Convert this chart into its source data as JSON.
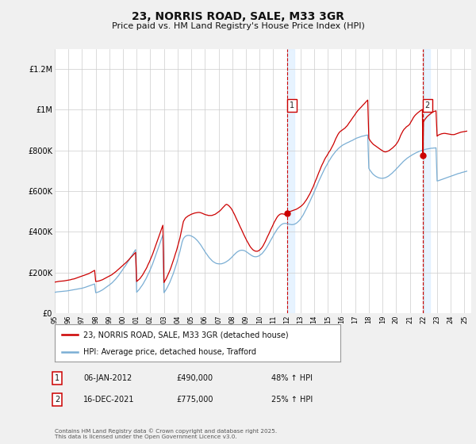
{
  "title": "23, NORRIS ROAD, SALE, M33 3GR",
  "subtitle": "Price paid vs. HM Land Registry's House Price Index (HPI)",
  "legend_line1": "23, NORRIS ROAD, SALE, M33 3GR (detached house)",
  "legend_line2": "HPI: Average price, detached house, Trafford",
  "annotation1_label": "1",
  "annotation1_date": "06-JAN-2012",
  "annotation1_price": "£490,000",
  "annotation1_hpi": "48% ↑ HPI",
  "annotation1_year": 2012.04,
  "annotation1_value": 490000,
  "annotation2_label": "2",
  "annotation2_date": "16-DEC-2021",
  "annotation2_price": "£775,000",
  "annotation2_hpi": "25% ↑ HPI",
  "annotation2_year": 2021.96,
  "annotation2_value": 775000,
  "red_color": "#cc0000",
  "blue_color": "#7aaed4",
  "shade_color": "#ddeeff",
  "bg_color": "#f0f0f0",
  "plot_bg": "#ffffff",
  "ylim": [
    0,
    1300000
  ],
  "xlim_start": 1995,
  "xlim_end": 2025.5,
  "footer": "Contains HM Land Registry data © Crown copyright and database right 2025.\nThis data is licensed under the Open Government Licence v3.0.",
  "red_data_years": [
    1995.0,
    1995.08,
    1995.17,
    1995.25,
    1995.33,
    1995.42,
    1995.5,
    1995.58,
    1995.67,
    1995.75,
    1995.83,
    1995.92,
    1996.0,
    1996.08,
    1996.17,
    1996.25,
    1996.33,
    1996.42,
    1996.5,
    1996.58,
    1996.67,
    1996.75,
    1996.83,
    1996.92,
    1997.0,
    1997.08,
    1997.17,
    1997.25,
    1997.33,
    1997.42,
    1997.5,
    1997.58,
    1997.67,
    1997.75,
    1997.83,
    1997.92,
    1998.0,
    1998.08,
    1998.17,
    1998.25,
    1998.33,
    1998.42,
    1998.5,
    1998.58,
    1998.67,
    1998.75,
    1998.83,
    1998.92,
    1999.0,
    1999.08,
    1999.17,
    1999.25,
    1999.33,
    1999.42,
    1999.5,
    1999.58,
    1999.67,
    1999.75,
    1999.83,
    1999.92,
    2000.0,
    2000.08,
    2000.17,
    2000.25,
    2000.33,
    2000.42,
    2000.5,
    2000.58,
    2000.67,
    2000.75,
    2000.83,
    2000.92,
    2001.0,
    2001.08,
    2001.17,
    2001.25,
    2001.33,
    2001.42,
    2001.5,
    2001.58,
    2001.67,
    2001.75,
    2001.83,
    2001.92,
    2002.0,
    2002.08,
    2002.17,
    2002.25,
    2002.33,
    2002.42,
    2002.5,
    2002.58,
    2002.67,
    2002.75,
    2002.83,
    2002.92,
    2003.0,
    2003.08,
    2003.17,
    2003.25,
    2003.33,
    2003.42,
    2003.5,
    2003.58,
    2003.67,
    2003.75,
    2003.83,
    2003.92,
    2004.0,
    2004.08,
    2004.17,
    2004.25,
    2004.33,
    2004.42,
    2004.5,
    2004.58,
    2004.67,
    2004.75,
    2004.83,
    2004.92,
    2005.0,
    2005.08,
    2005.17,
    2005.25,
    2005.33,
    2005.42,
    2005.5,
    2005.58,
    2005.67,
    2005.75,
    2005.83,
    2005.92,
    2006.0,
    2006.08,
    2006.17,
    2006.25,
    2006.33,
    2006.42,
    2006.5,
    2006.58,
    2006.67,
    2006.75,
    2006.83,
    2006.92,
    2007.0,
    2007.08,
    2007.17,
    2007.25,
    2007.33,
    2007.42,
    2007.5,
    2007.58,
    2007.67,
    2007.75,
    2007.83,
    2007.92,
    2008.0,
    2008.08,
    2008.17,
    2008.25,
    2008.33,
    2008.42,
    2008.5,
    2008.58,
    2008.67,
    2008.75,
    2008.83,
    2008.92,
    2009.0,
    2009.08,
    2009.17,
    2009.25,
    2009.33,
    2009.42,
    2009.5,
    2009.58,
    2009.67,
    2009.75,
    2009.83,
    2009.92,
    2010.0,
    2010.08,
    2010.17,
    2010.25,
    2010.33,
    2010.42,
    2010.5,
    2010.58,
    2010.67,
    2010.75,
    2010.83,
    2010.92,
    2011.0,
    2011.08,
    2011.17,
    2011.25,
    2011.33,
    2011.42,
    2011.5,
    2011.58,
    2011.67,
    2011.75,
    2011.83,
    2011.92,
    2012.0,
    2012.04,
    2012.08,
    2012.17,
    2012.25,
    2012.33,
    2012.42,
    2012.5,
    2012.58,
    2012.67,
    2012.75,
    2012.83,
    2012.92,
    2013.0,
    2013.08,
    2013.17,
    2013.25,
    2013.33,
    2013.42,
    2013.5,
    2013.58,
    2013.67,
    2013.75,
    2013.83,
    2013.92,
    2014.0,
    2014.08,
    2014.17,
    2014.25,
    2014.33,
    2014.42,
    2014.5,
    2014.58,
    2014.67,
    2014.75,
    2014.83,
    2014.92,
    2015.0,
    2015.08,
    2015.17,
    2015.25,
    2015.33,
    2015.42,
    2015.5,
    2015.58,
    2015.67,
    2015.75,
    2015.83,
    2015.92,
    2016.0,
    2016.08,
    2016.17,
    2016.25,
    2016.33,
    2016.42,
    2016.5,
    2016.58,
    2016.67,
    2016.75,
    2016.83,
    2016.92,
    2017.0,
    2017.08,
    2017.17,
    2017.25,
    2017.33,
    2017.42,
    2017.5,
    2017.58,
    2017.67,
    2017.75,
    2017.83,
    2017.92,
    2018.0,
    2018.08,
    2018.17,
    2018.25,
    2018.33,
    2018.42,
    2018.5,
    2018.58,
    2018.67,
    2018.75,
    2018.83,
    2018.92,
    2019.0,
    2019.08,
    2019.17,
    2019.25,
    2019.33,
    2019.42,
    2019.5,
    2019.58,
    2019.67,
    2019.75,
    2019.83,
    2019.92,
    2020.0,
    2020.08,
    2020.17,
    2020.25,
    2020.33,
    2020.42,
    2020.5,
    2020.58,
    2020.67,
    2020.75,
    2020.83,
    2020.92,
    2021.0,
    2021.08,
    2021.17,
    2021.25,
    2021.33,
    2021.42,
    2021.5,
    2021.58,
    2021.67,
    2021.75,
    2021.83,
    2021.92,
    2021.96,
    2022.0,
    2022.08,
    2022.17,
    2022.25,
    2022.33,
    2022.42,
    2022.5,
    2022.58,
    2022.67,
    2022.75,
    2022.83,
    2022.92,
    2023.0,
    2023.08,
    2023.17,
    2023.25,
    2023.33,
    2023.42,
    2023.5,
    2023.58,
    2023.67,
    2023.75,
    2023.83,
    2023.92,
    2024.0,
    2024.08,
    2024.17,
    2024.25,
    2024.33,
    2024.42,
    2024.5,
    2024.58,
    2024.67,
    2024.75,
    2024.83,
    2024.92,
    2025.0,
    2025.08,
    2025.17
  ],
  "red_data_values": [
    152000,
    153000,
    154000,
    155000,
    156000,
    156500,
    157000,
    157500,
    158000,
    159000,
    160000,
    161000,
    162000,
    163000,
    164000,
    166000,
    167000,
    168000,
    170000,
    172000,
    174000,
    176000,
    178000,
    180000,
    182000,
    184000,
    186000,
    188000,
    190000,
    192000,
    194000,
    197000,
    200000,
    203000,
    206000,
    210000,
    155000,
    156000,
    157000,
    158000,
    160000,
    162000,
    164000,
    167000,
    170000,
    173000,
    176000,
    179000,
    182000,
    185000,
    188000,
    192000,
    196000,
    200000,
    205000,
    210000,
    215000,
    220000,
    225000,
    230000,
    235000,
    240000,
    245000,
    250000,
    256000,
    262000,
    268000,
    274000,
    280000,
    286000,
    292000,
    298000,
    155000,
    160000,
    165000,
    170000,
    178000,
    186000,
    195000,
    205000,
    215000,
    225000,
    238000,
    250000,
    263000,
    276000,
    290000,
    305000,
    320000,
    336000,
    352000,
    368000,
    384000,
    400000,
    416000,
    432000,
    150000,
    160000,
    170000,
    182000,
    195000,
    208000,
    222000,
    238000,
    255000,
    272000,
    290000,
    308000,
    328000,
    348000,
    370000,
    395000,
    422000,
    450000,
    460000,
    468000,
    473000,
    477000,
    480000,
    483000,
    486000,
    488000,
    490000,
    492000,
    493000,
    494000,
    495000,
    495000,
    494000,
    492000,
    490000,
    487000,
    485000,
    483000,
    482000,
    480000,
    480000,
    480000,
    480000,
    482000,
    484000,
    486000,
    490000,
    494000,
    498000,
    502000,
    508000,
    514000,
    520000,
    526000,
    532000,
    535000,
    532000,
    528000,
    522000,
    515000,
    506000,
    496000,
    484000,
    472000,
    460000,
    448000,
    436000,
    424000,
    412000,
    400000,
    388000,
    376000,
    365000,
    354000,
    344000,
    334000,
    325000,
    318000,
    312000,
    308000,
    305000,
    304000,
    304000,
    306000,
    310000,
    315000,
    322000,
    330000,
    340000,
    352000,
    364000,
    376000,
    388000,
    400000,
    412000,
    424000,
    436000,
    448000,
    458000,
    468000,
    476000,
    482000,
    486000,
    488000,
    488000,
    487000,
    485000,
    483000,
    480000,
    490000,
    495000,
    498000,
    500000,
    502000,
    504000,
    506000,
    508000,
    510000,
    513000,
    516000,
    520000,
    524000,
    528000,
    534000,
    540000,
    548000,
    556000,
    565000,
    575000,
    585000,
    596000,
    608000,
    620000,
    634000,
    648000,
    662000,
    676000,
    690000,
    704000,
    718000,
    730000,
    742000,
    754000,
    764000,
    773000,
    782000,
    792000,
    800000,
    810000,
    820000,
    832000,
    845000,
    858000,
    870000,
    880000,
    888000,
    894000,
    898000,
    902000,
    906000,
    910000,
    916000,
    922000,
    930000,
    938000,
    946000,
    954000,
    962000,
    970000,
    978000,
    986000,
    994000,
    1000000,
    1006000,
    1012000,
    1018000,
    1024000,
    1030000,
    1036000,
    1042000,
    1048000,
    860000,
    850000,
    842000,
    836000,
    830000,
    826000,
    822000,
    818000,
    814000,
    810000,
    806000,
    802000,
    798000,
    795000,
    793000,
    793000,
    795000,
    797000,
    800000,
    804000,
    808000,
    813000,
    818000,
    824000,
    830000,
    838000,
    848000,
    860000,
    874000,
    886000,
    896000,
    904000,
    910000,
    916000,
    920000,
    924000,
    930000,
    940000,
    950000,
    960000,
    968000,
    975000,
    980000,
    985000,
    990000,
    994000,
    998000,
    1002000,
    775000,
    940000,
    950000,
    958000,
    965000,
    970000,
    975000,
    980000,
    984000,
    988000,
    991000,
    993000,
    995000,
    870000,
    875000,
    878000,
    880000,
    882000,
    883000,
    884000,
    884000,
    883000,
    882000,
    881000,
    880000,
    879000,
    878000,
    878000,
    878000,
    880000,
    882000,
    884000,
    886000,
    888000,
    890000,
    891000,
    892000,
    893000,
    894000,
    895000
  ],
  "blue_data_years": [
    1995.0,
    1995.08,
    1995.17,
    1995.25,
    1995.33,
    1995.42,
    1995.5,
    1995.58,
    1995.67,
    1995.75,
    1995.83,
    1995.92,
    1996.0,
    1996.08,
    1996.17,
    1996.25,
    1996.33,
    1996.42,
    1996.5,
    1996.58,
    1996.67,
    1996.75,
    1996.83,
    1996.92,
    1997.0,
    1997.08,
    1997.17,
    1997.25,
    1997.33,
    1997.42,
    1997.5,
    1997.58,
    1997.67,
    1997.75,
    1997.83,
    1997.92,
    1998.0,
    1998.08,
    1998.17,
    1998.25,
    1998.33,
    1998.42,
    1998.5,
    1998.58,
    1998.67,
    1998.75,
    1998.83,
    1998.92,
    1999.0,
    1999.08,
    1999.17,
    1999.25,
    1999.33,
    1999.42,
    1999.5,
    1999.58,
    1999.67,
    1999.75,
    1999.83,
    1999.92,
    2000.0,
    2000.08,
    2000.17,
    2000.25,
    2000.33,
    2000.42,
    2000.5,
    2000.58,
    2000.67,
    2000.75,
    2000.83,
    2000.92,
    2001.0,
    2001.08,
    2001.17,
    2001.25,
    2001.33,
    2001.42,
    2001.5,
    2001.58,
    2001.67,
    2001.75,
    2001.83,
    2001.92,
    2002.0,
    2002.08,
    2002.17,
    2002.25,
    2002.33,
    2002.42,
    2002.5,
    2002.58,
    2002.67,
    2002.75,
    2002.83,
    2002.92,
    2003.0,
    2003.08,
    2003.17,
    2003.25,
    2003.33,
    2003.42,
    2003.5,
    2003.58,
    2003.67,
    2003.75,
    2003.83,
    2003.92,
    2004.0,
    2004.08,
    2004.17,
    2004.25,
    2004.33,
    2004.42,
    2004.5,
    2004.58,
    2004.67,
    2004.75,
    2004.83,
    2004.92,
    2005.0,
    2005.08,
    2005.17,
    2005.25,
    2005.33,
    2005.42,
    2005.5,
    2005.58,
    2005.67,
    2005.75,
    2005.83,
    2005.92,
    2006.0,
    2006.08,
    2006.17,
    2006.25,
    2006.33,
    2006.42,
    2006.5,
    2006.58,
    2006.67,
    2006.75,
    2006.83,
    2006.92,
    2007.0,
    2007.08,
    2007.17,
    2007.25,
    2007.33,
    2007.42,
    2007.5,
    2007.58,
    2007.67,
    2007.75,
    2007.83,
    2007.92,
    2008.0,
    2008.08,
    2008.17,
    2008.25,
    2008.33,
    2008.42,
    2008.5,
    2008.58,
    2008.67,
    2008.75,
    2008.83,
    2008.92,
    2009.0,
    2009.08,
    2009.17,
    2009.25,
    2009.33,
    2009.42,
    2009.5,
    2009.58,
    2009.67,
    2009.75,
    2009.83,
    2009.92,
    2010.0,
    2010.08,
    2010.17,
    2010.25,
    2010.33,
    2010.42,
    2010.5,
    2010.58,
    2010.67,
    2010.75,
    2010.83,
    2010.92,
    2011.0,
    2011.08,
    2011.17,
    2011.25,
    2011.33,
    2011.42,
    2011.5,
    2011.58,
    2011.67,
    2011.75,
    2011.83,
    2011.92,
    2012.0,
    2012.08,
    2012.17,
    2012.25,
    2012.33,
    2012.42,
    2012.5,
    2012.58,
    2012.67,
    2012.75,
    2012.83,
    2012.92,
    2013.0,
    2013.08,
    2013.17,
    2013.25,
    2013.33,
    2013.42,
    2013.5,
    2013.58,
    2013.67,
    2013.75,
    2013.83,
    2013.92,
    2014.0,
    2014.08,
    2014.17,
    2014.25,
    2014.33,
    2014.42,
    2014.5,
    2014.58,
    2014.67,
    2014.75,
    2014.83,
    2014.92,
    2015.0,
    2015.08,
    2015.17,
    2015.25,
    2015.33,
    2015.42,
    2015.5,
    2015.58,
    2015.67,
    2015.75,
    2015.83,
    2015.92,
    2016.0,
    2016.08,
    2016.17,
    2016.25,
    2016.33,
    2016.42,
    2016.5,
    2016.58,
    2016.67,
    2016.75,
    2016.83,
    2016.92,
    2017.0,
    2017.08,
    2017.17,
    2017.25,
    2017.33,
    2017.42,
    2017.5,
    2017.58,
    2017.67,
    2017.75,
    2017.83,
    2017.92,
    2018.0,
    2018.08,
    2018.17,
    2018.25,
    2018.33,
    2018.42,
    2018.5,
    2018.58,
    2018.67,
    2018.75,
    2018.83,
    2018.92,
    2019.0,
    2019.08,
    2019.17,
    2019.25,
    2019.33,
    2019.42,
    2019.5,
    2019.58,
    2019.67,
    2019.75,
    2019.83,
    2019.92,
    2020.0,
    2020.08,
    2020.17,
    2020.25,
    2020.33,
    2020.42,
    2020.5,
    2020.58,
    2020.67,
    2020.75,
    2020.83,
    2020.92,
    2021.0,
    2021.08,
    2021.17,
    2021.25,
    2021.33,
    2021.42,
    2021.5,
    2021.58,
    2021.67,
    2021.75,
    2021.83,
    2021.92,
    2022.0,
    2022.08,
    2022.17,
    2022.25,
    2022.33,
    2022.42,
    2022.5,
    2022.58,
    2022.67,
    2022.75,
    2022.83,
    2022.92,
    2023.0,
    2023.08,
    2023.17,
    2023.25,
    2023.33,
    2023.42,
    2023.5,
    2023.58,
    2023.67,
    2023.75,
    2023.83,
    2023.92,
    2024.0,
    2024.08,
    2024.17,
    2024.25,
    2024.33,
    2024.42,
    2024.5,
    2024.58,
    2024.67,
    2024.75,
    2024.83,
    2024.92,
    2025.0,
    2025.08,
    2025.17
  ],
  "blue_data_values": [
    102000,
    103000,
    104000,
    104500,
    105000,
    105500,
    106000,
    106500,
    107000,
    107500,
    108000,
    109000,
    110000,
    111000,
    112000,
    113000,
    114000,
    115000,
    116000,
    117000,
    118000,
    119000,
    120000,
    121000,
    122000,
    123500,
    125000,
    127000,
    129000,
    131000,
    133000,
    135000,
    137000,
    139000,
    141000,
    143000,
    100000,
    101000,
    103000,
    105000,
    108000,
    111000,
    114000,
    118000,
    122000,
    126000,
    130000,
    134000,
    138000,
    142000,
    147000,
    152000,
    158000,
    164000,
    170000,
    177000,
    184000,
    192000,
    200000,
    208000,
    216000,
    224000,
    232000,
    240000,
    249000,
    258000,
    267000,
    276000,
    285000,
    294000,
    303000,
    312000,
    102000,
    108000,
    115000,
    122000,
    130000,
    138000,
    147000,
    157000,
    167000,
    178000,
    190000,
    202000,
    215000,
    228000,
    242000,
    257000,
    272000,
    288000,
    304000,
    320000,
    336000,
    352000,
    368000,
    384000,
    100000,
    108000,
    117000,
    127000,
    138000,
    150000,
    163000,
    177000,
    192000,
    208000,
    225000,
    243000,
    262000,
    282000,
    304000,
    327000,
    350000,
    366000,
    373000,
    378000,
    381000,
    382000,
    382000,
    381000,
    379000,
    376000,
    373000,
    369000,
    364000,
    358000,
    352000,
    345000,
    337000,
    329000,
    320000,
    311000,
    302000,
    294000,
    286000,
    278000,
    271000,
    265000,
    259000,
    254000,
    250000,
    247000,
    244000,
    243000,
    242000,
    242000,
    242000,
    243000,
    245000,
    247000,
    250000,
    253000,
    257000,
    261000,
    266000,
    271000,
    277000,
    283000,
    289000,
    294000,
    299000,
    303000,
    306000,
    308000,
    309000,
    309000,
    308000,
    306000,
    303000,
    299000,
    295000,
    291000,
    287000,
    283000,
    280000,
    278000,
    277000,
    277000,
    278000,
    280000,
    283000,
    287000,
    292000,
    298000,
    305000,
    313000,
    321000,
    330000,
    340000,
    350000,
    360000,
    370000,
    380000,
    390000,
    399000,
    408000,
    416000,
    423000,
    429000,
    434000,
    438000,
    440000,
    441000,
    441000,
    440000,
    439000,
    437000,
    436000,
    435000,
    435000,
    436000,
    438000,
    441000,
    445000,
    450000,
    456000,
    463000,
    471000,
    480000,
    490000,
    501000,
    512000,
    523000,
    535000,
    547000,
    559000,
    571000,
    583000,
    596000,
    609000,
    622000,
    635000,
    648000,
    661000,
    673000,
    685000,
    697000,
    708000,
    718000,
    728000,
    738000,
    748000,
    757000,
    766000,
    774000,
    782000,
    789000,
    796000,
    802000,
    808000,
    813000,
    818000,
    822000,
    826000,
    829000,
    832000,
    835000,
    838000,
    840000,
    843000,
    846000,
    848000,
    851000,
    854000,
    857000,
    860000,
    862000,
    864000,
    866000,
    868000,
    870000,
    871000,
    872000,
    874000,
    875000,
    876000,
    712000,
    703000,
    695000,
    688000,
    682000,
    677000,
    673000,
    670000,
    667000,
    665000,
    664000,
    663000,
    663000,
    664000,
    665000,
    667000,
    670000,
    673000,
    677000,
    682000,
    686000,
    691000,
    697000,
    702000,
    708000,
    714000,
    720000,
    726000,
    732000,
    738000,
    744000,
    749000,
    754000,
    759000,
    763000,
    767000,
    771000,
    774000,
    778000,
    781000,
    784000,
    787000,
    790000,
    792000,
    795000,
    797000,
    799000,
    801000,
    803000,
    804000,
    806000,
    807000,
    808000,
    809000,
    810000,
    811000,
    811000,
    812000,
    812000,
    813000,
    650000,
    651000,
    653000,
    655000,
    657000,
    659000,
    661000,
    663000,
    665000,
    667000,
    669000,
    671000,
    673000,
    675000,
    677000,
    679000,
    681000,
    683000,
    685000,
    687000,
    688000,
    690000,
    692000,
    693000,
    695000,
    696000,
    698000
  ]
}
